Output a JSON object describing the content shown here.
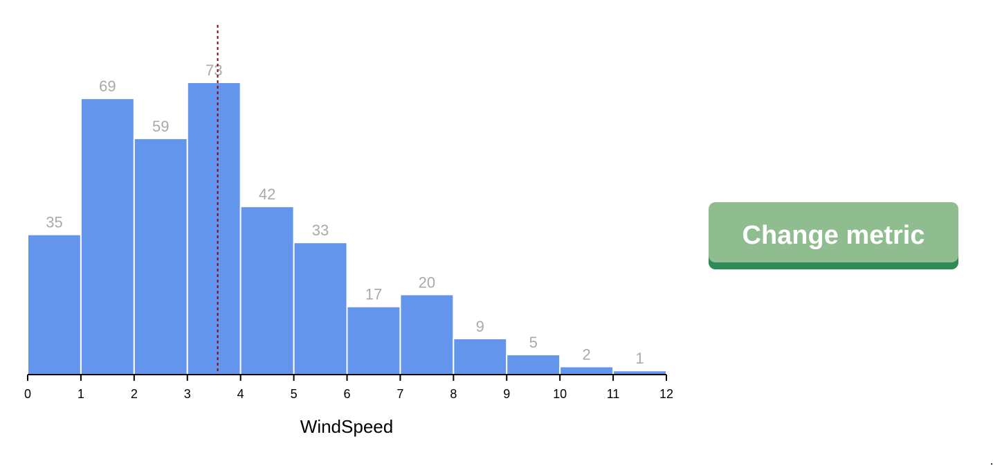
{
  "chart_data": {
    "type": "bar",
    "subtype": "histogram",
    "bin_edges": [
      0,
      1,
      2,
      3,
      4,
      5,
      6,
      7,
      8,
      9,
      10,
      11,
      12
    ],
    "x_tick_labels": [
      "0",
      "1",
      "2",
      "3",
      "4",
      "5",
      "6",
      "7",
      "8",
      "9",
      "10",
      "11",
      "12"
    ],
    "values": [
      35,
      69,
      59,
      73,
      42,
      33,
      17,
      20,
      9,
      5,
      2,
      1
    ],
    "value_labels": [
      "35",
      "69",
      "59",
      "73",
      "42",
      "33",
      "17",
      "20",
      "9",
      "5",
      "2",
      "1"
    ],
    "xlabel": "WindSpeed",
    "ylabel": "",
    "title": "",
    "xlim": [
      0,
      12
    ],
    "ylim": [
      0,
      73
    ],
    "reference_line": {
      "x": 3.57,
      "style": "dotted"
    },
    "grid": false,
    "colors": {
      "bar": "#6495ed",
      "bar_outline": "#ffffff",
      "label": "#a9a9a9",
      "reference_line": "#8b0000",
      "axis": "#000000"
    }
  },
  "controls": {
    "change_metric_label": "Change metric",
    "colors": {
      "button": "#8fbd8f",
      "button_shadow": "#2e8b57",
      "button_text": "#ffffff"
    }
  }
}
